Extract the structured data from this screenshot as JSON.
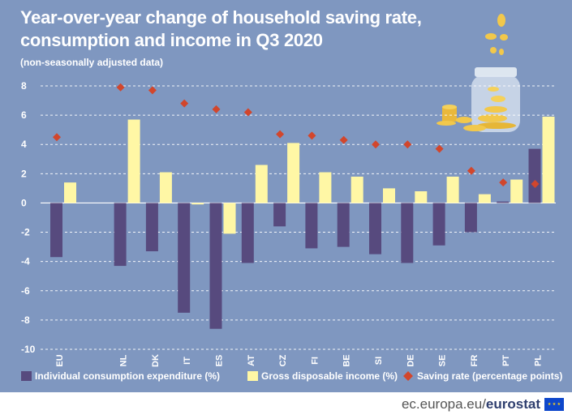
{
  "title_line1": "Year-over-year change of household saving rate,",
  "title_line2": "consumption and income in Q3 2020",
  "subtitle": "(non-seasonally adjusted data)",
  "footer": {
    "domain": "ec.europa.eu/",
    "brand": "eurostat"
  },
  "chart_data": {
    "type": "bar",
    "categories": [
      "EU",
      "NL",
      "DK",
      "IT",
      "ES",
      "AT",
      "CZ",
      "FI",
      "BE",
      "SI",
      "DE",
      "SE",
      "FR",
      "PT",
      "PL"
    ],
    "series": [
      {
        "name": "Individual consumption expenditure (%)",
        "kind": "bar",
        "color": "#574a7e",
        "values": [
          -3.7,
          -4.3,
          -3.3,
          -7.5,
          -8.6,
          -4.1,
          -1.6,
          -3.1,
          -3.0,
          -3.5,
          -4.1,
          -2.9,
          -2.0,
          0.1,
          3.7
        ]
      },
      {
        "name": "Gross disposable income (%)",
        "kind": "bar",
        "color": "#fff7a5",
        "values": [
          1.4,
          5.7,
          2.1,
          -0.1,
          -2.1,
          2.6,
          4.1,
          2.1,
          1.8,
          1.0,
          0.8,
          1.8,
          0.6,
          1.6,
          5.9
        ]
      },
      {
        "name": "Saving rate (percentage points)",
        "kind": "point",
        "color": "#d2462c",
        "values": [
          4.5,
          7.9,
          7.7,
          6.8,
          6.4,
          6.2,
          4.7,
          4.6,
          4.3,
          4.0,
          4.0,
          3.7,
          2.2,
          1.4,
          1.3
        ]
      }
    ],
    "yticks": [
      8,
      6,
      4,
      2,
      0,
      -2,
      -4,
      -6,
      -8,
      -10
    ],
    "ylim": [
      -10,
      8
    ],
    "legend_position": "bottom"
  }
}
